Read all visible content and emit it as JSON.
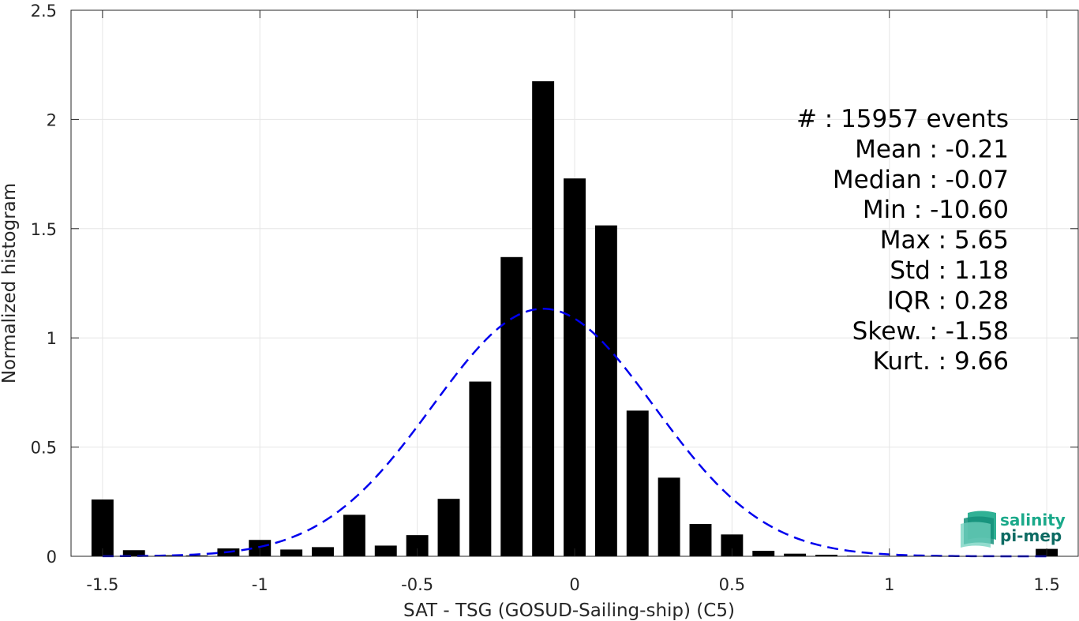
{
  "chart_data": {
    "type": "bar",
    "title": "",
    "xlabel": "SAT - TSG (GOSUD-Sailing-ship) (C5)",
    "ylabel": "Normalized histogram",
    "xlim": [
      -1.6,
      1.6
    ],
    "ylim": [
      0,
      2.5
    ],
    "x_ticks": [
      -1.5,
      -1,
      -0.5,
      0,
      0.5,
      1,
      1.5
    ],
    "x_tick_labels": [
      "-1.5",
      "-1",
      "-0.5",
      "0",
      "0.5",
      "1",
      "1.5"
    ],
    "y_ticks": [
      0,
      0.5,
      1,
      1.5,
      2,
      2.5
    ],
    "y_tick_labels": [
      "0",
      "0.5",
      "1",
      "1.5",
      "2",
      "2.5"
    ],
    "grid": true,
    "bar_color": "#000000",
    "bar_width": 0.07,
    "bars": [
      {
        "x": -1.5,
        "y": 0.26
      },
      {
        "x": -1.4,
        "y": 0.028
      },
      {
        "x": -1.3,
        "y": 0.005
      },
      {
        "x": -1.2,
        "y": 0.004
      },
      {
        "x": -1.1,
        "y": 0.036
      },
      {
        "x": -1.0,
        "y": 0.075
      },
      {
        "x": -0.9,
        "y": 0.031
      },
      {
        "x": -0.8,
        "y": 0.042
      },
      {
        "x": -0.7,
        "y": 0.19
      },
      {
        "x": -0.6,
        "y": 0.049
      },
      {
        "x": -0.5,
        "y": 0.097
      },
      {
        "x": -0.4,
        "y": 0.263
      },
      {
        "x": -0.3,
        "y": 0.8
      },
      {
        "x": -0.2,
        "y": 1.37
      },
      {
        "x": -0.1,
        "y": 2.175
      },
      {
        "x": 0.0,
        "y": 1.73
      },
      {
        "x": 0.1,
        "y": 1.515
      },
      {
        "x": 0.2,
        "y": 0.667
      },
      {
        "x": 0.3,
        "y": 0.36
      },
      {
        "x": 0.4,
        "y": 0.148
      },
      {
        "x": 0.5,
        "y": 0.1
      },
      {
        "x": 0.6,
        "y": 0.025
      },
      {
        "x": 0.7,
        "y": 0.012
      },
      {
        "x": 0.8,
        "y": 0.007
      },
      {
        "x": 0.9,
        "y": 0.003
      },
      {
        "x": 1.0,
        "y": 0.002
      },
      {
        "x": 1.1,
        "y": 0.002
      },
      {
        "x": 1.2,
        "y": 0.001
      },
      {
        "x": 1.3,
        "y": 0.001
      },
      {
        "x": 1.4,
        "y": 0.001
      },
      {
        "x": 1.5,
        "y": 0.034
      }
    ],
    "fit_curve": {
      "style": "dashed",
      "color": "#0000ee",
      "mean": -0.1,
      "std": 0.352,
      "x_range": [
        -1.5,
        1.5
      ]
    },
    "stats": [
      "#  : 15957 events",
      "Mean : -0.21",
      "Median : -0.07",
      "Min : -10.60",
      "Max : 5.65",
      "Std : 1.18",
      "IQR : 0.28",
      "Skew. : -1.58",
      "Kurt. : 9.66"
    ],
    "legend_position": "top-right"
  },
  "logo": {
    "line1": "salinity",
    "line2": "pi-mep",
    "color1": "#1aa98a",
    "color2": "#0d6b63"
  }
}
